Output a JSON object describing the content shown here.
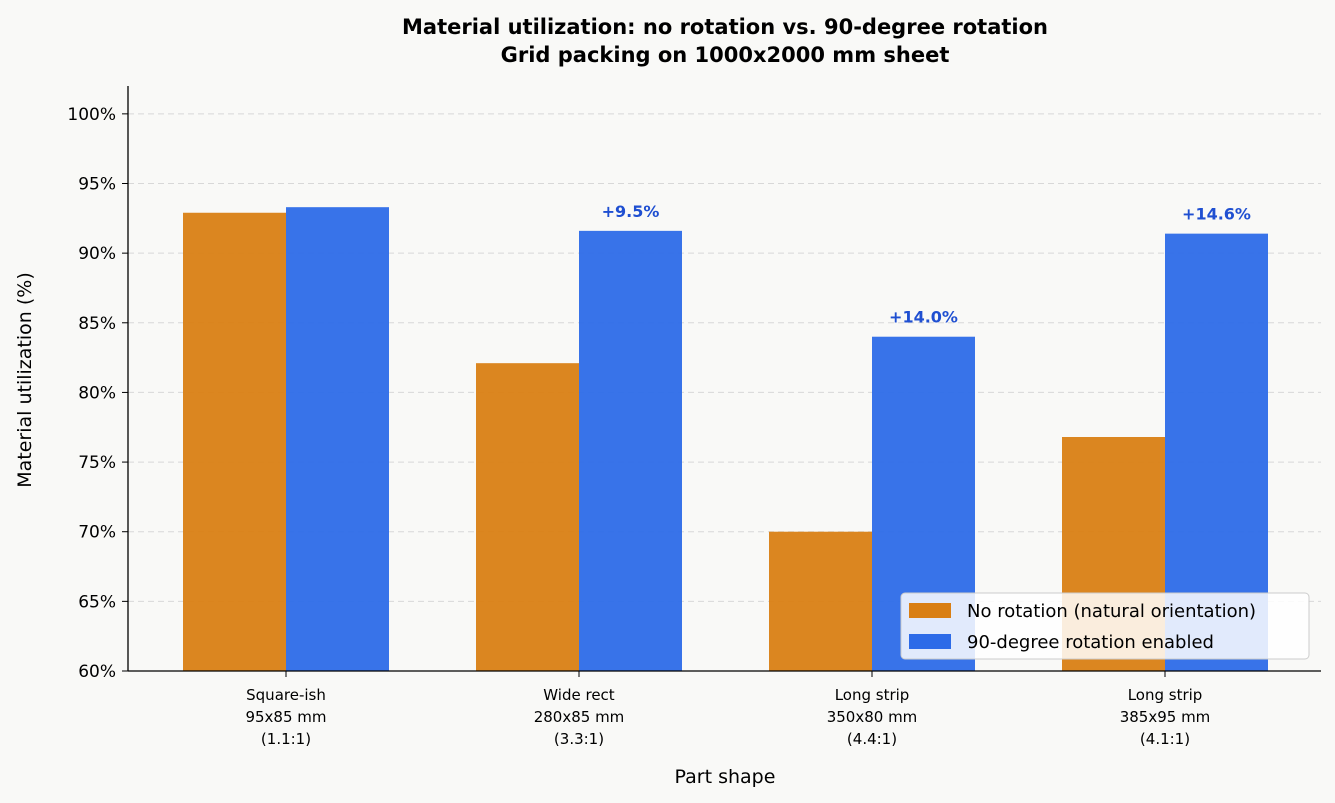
{
  "chart_data": {
    "type": "bar",
    "title": "Material utilization: no rotation vs. 90-degree rotation",
    "subtitle": "Grid packing on 1000x2000 mm sheet",
    "xlabel": "Part shape",
    "ylabel": "Material utilization (%)",
    "ylim": [
      60,
      102
    ],
    "yticks": [
      60,
      65,
      70,
      75,
      80,
      85,
      90,
      95,
      100
    ],
    "ytick_labels": [
      "60%",
      "65%",
      "70%",
      "75%",
      "80%",
      "85%",
      "90%",
      "95%",
      "100%"
    ],
    "grid": true,
    "legend_position": "bottom-right",
    "categories": [
      [
        "Square-ish",
        "95x85 mm",
        "(1.1:1)"
      ],
      [
        "Wide rect",
        "280x85 mm",
        "(3.3:1)"
      ],
      [
        "Long strip",
        "350x80 mm",
        "(4.4:1)"
      ],
      [
        "Long strip",
        "385x95 mm",
        "(4.1:1)"
      ]
    ],
    "series": [
      {
        "name": "No rotation (natural orientation)",
        "color": "#d97f14",
        "values": [
          92.9,
          82.1,
          70.0,
          76.8
        ]
      },
      {
        "name": "90-degree rotation enabled",
        "color": "#2d6be8",
        "values": [
          93.3,
          91.6,
          84.0,
          91.4
        ]
      }
    ],
    "annotations": [
      "",
      "+9.5%",
      "+14.0%",
      "+14.6%"
    ],
    "annotation_color": "#1f4fd1"
  }
}
